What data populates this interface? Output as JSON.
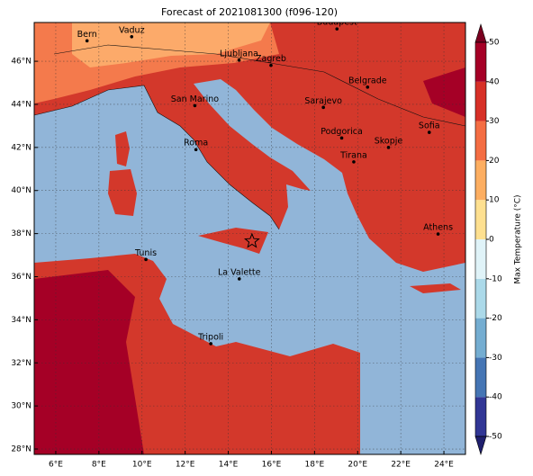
{
  "chart_data": {
    "type": "map",
    "title": "Forecast of 2021081300 (f096-120)",
    "xlim": [
      5,
      25
    ],
    "ylim": [
      27.75,
      47.8
    ],
    "xticks": [
      {
        "value": 6,
        "label": "6°E"
      },
      {
        "value": 8,
        "label": "8°E"
      },
      {
        "value": 10,
        "label": "10°E"
      },
      {
        "value": 12,
        "label": "12°E"
      },
      {
        "value": 14,
        "label": "14°E"
      },
      {
        "value": 16,
        "label": "16°E"
      },
      {
        "value": 18,
        "label": "18°E"
      },
      {
        "value": 20,
        "label": "20°E"
      },
      {
        "value": 22,
        "label": "22°E"
      },
      {
        "value": 24,
        "label": "24°E"
      }
    ],
    "yticks": [
      {
        "value": 28,
        "label": "28°N"
      },
      {
        "value": 30,
        "label": "30°N"
      },
      {
        "value": 32,
        "label": "32°N"
      },
      {
        "value": 34,
        "label": "34°N"
      },
      {
        "value": 36,
        "label": "36°N"
      },
      {
        "value": 38,
        "label": "38°N"
      },
      {
        "value": 40,
        "label": "40°N"
      },
      {
        "value": 42,
        "label": "42°N"
      },
      {
        "value": 44,
        "label": "44°N"
      },
      {
        "value": 46,
        "label": "46°N"
      }
    ],
    "grid": true,
    "cities": [
      {
        "name": "Bern",
        "lon": 7.45,
        "lat": 46.95
      },
      {
        "name": "Vaduz",
        "lon": 9.52,
        "lat": 47.14
      },
      {
        "name": "Budapest",
        "lon": 19.04,
        "lat": 47.5
      },
      {
        "name": "Ljubljana",
        "lon": 14.5,
        "lat": 46.05
      },
      {
        "name": "Zagreb",
        "lon": 15.98,
        "lat": 45.81
      },
      {
        "name": "Belgrade",
        "lon": 20.46,
        "lat": 44.8
      },
      {
        "name": "San Marino",
        "lon": 12.45,
        "lat": 43.94
      },
      {
        "name": "Sarajevo",
        "lon": 18.41,
        "lat": 43.86
      },
      {
        "name": "Sofia",
        "lon": 23.32,
        "lat": 42.7
      },
      {
        "name": "Podgorica",
        "lon": 19.26,
        "lat": 42.44
      },
      {
        "name": "Skopje",
        "lon": 21.43,
        "lat": 42.0
      },
      {
        "name": "Roma",
        "lon": 12.5,
        "lat": 41.9
      },
      {
        "name": "Tirana",
        "lon": 19.82,
        "lat": 41.33
      },
      {
        "name": "Athens",
        "lon": 23.73,
        "lat": 37.98
      },
      {
        "name": "Tunis",
        "lon": 10.18,
        "lat": 36.8
      },
      {
        "name": "La Valette",
        "lon": 14.51,
        "lat": 35.9
      },
      {
        "name": "Tripoli",
        "lon": 13.19,
        "lat": 32.89
      }
    ],
    "star": {
      "lon": 15.1,
      "lat": 37.65
    },
    "colorbar": {
      "label": "Max Temperature (°C)",
      "ticks": [
        -50,
        -40,
        -30,
        -20,
        -10,
        0,
        10,
        20,
        30,
        40,
        50
      ],
      "colors": [
        "#313695",
        "#4575b4",
        "#74add1",
        "#abd9e9",
        "#e0f3f8",
        "#fee090",
        "#fdae61",
        "#f46d43",
        "#d73027",
        "#a50026"
      ],
      "under_color": "#1f1f6e",
      "over_color": "#7a0020"
    }
  }
}
